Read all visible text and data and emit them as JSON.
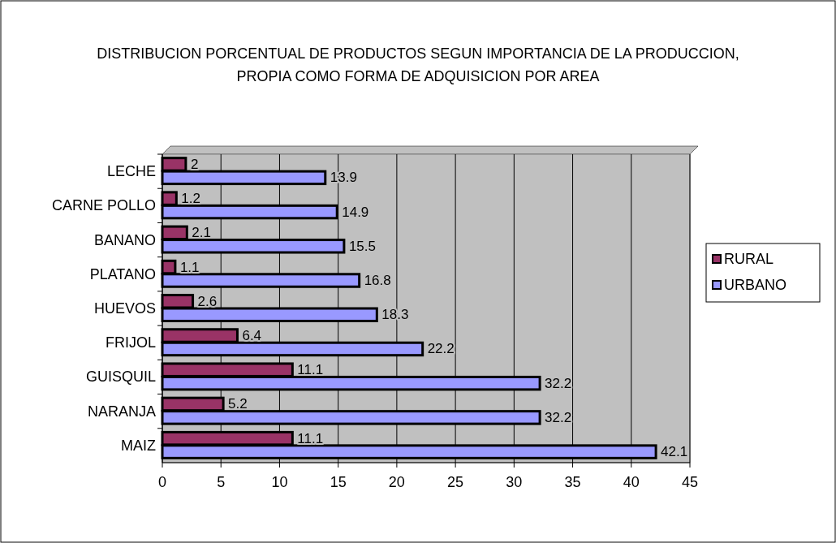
{
  "chart_data": {
    "type": "bar",
    "orientation": "horizontal",
    "title": "DISTRIBUCION PORCENTUAL DE PRODUCTOS SEGUN  IMPORTANCIA DE LA PRODUCCION, PROPIA COMO FORMA DE ADQUISICION POR AREA",
    "categories": [
      "LECHE",
      "CARNE POLLO",
      "BANANO",
      "PLATANO",
      "HUEVOS",
      "FRIJOL",
      "GUISQUIL",
      "NARANJA",
      "MAIZ"
    ],
    "series": [
      {
        "name": "RURAL",
        "color": "#993366",
        "values": [
          2,
          1.2,
          2.1,
          1.1,
          2.6,
          6.4,
          11.1,
          5.2,
          11.1
        ]
      },
      {
        "name": "URBANO",
        "color": "#9999ff",
        "values": [
          13.9,
          14.9,
          15.5,
          16.8,
          18.3,
          22.2,
          32.2,
          32.2,
          42.1
        ]
      }
    ],
    "xlim": [
      0,
      45
    ],
    "xticks": [
      0,
      5,
      10,
      15,
      20,
      25,
      30,
      35,
      40,
      45
    ],
    "grid": "x",
    "legend": "right",
    "data_labels": true
  }
}
